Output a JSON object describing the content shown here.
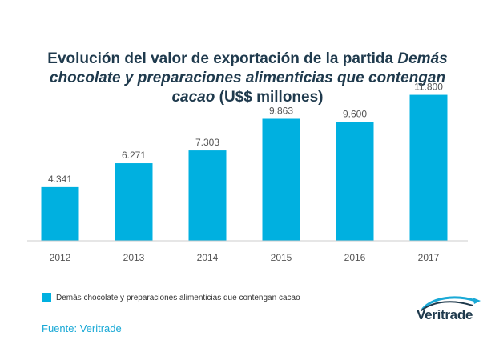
{
  "title": {
    "part1": "Evolución del valor de exportación de la partida ",
    "part2": "Demás chocolate y preparaciones alimenticias que contengan cacao",
    "part3": " (U$$ millones)"
  },
  "chart_data": {
    "type": "bar",
    "categories": [
      "2012",
      "2013",
      "2014",
      "2015",
      "2016",
      "2017"
    ],
    "series": [
      {
        "name": "Demás chocolate y preparaciones alimenticias que contengan cacao",
        "values": [
          4341,
          6271,
          7303,
          9863,
          9600,
          11800
        ],
        "labels": [
          "4.341",
          "6.271",
          "7.303",
          "9.863",
          "9.600",
          "11.800"
        ],
        "color": "#00b0e0"
      }
    ],
    "ylim": [
      0,
      13000
    ],
    "grid": false,
    "legend": "bottom-left"
  },
  "source": "Fuente: Veritrade",
  "logo": {
    "text": "Veritrade",
    "icon": "veritrade-swoosh-icon",
    "color": "#1f3a4d",
    "accent": "#1aa9d6"
  },
  "colors": {
    "bar": "#00b0e0",
    "axis": "#cccccc",
    "label": "#555555",
    "title": "#1f3a4d"
  }
}
